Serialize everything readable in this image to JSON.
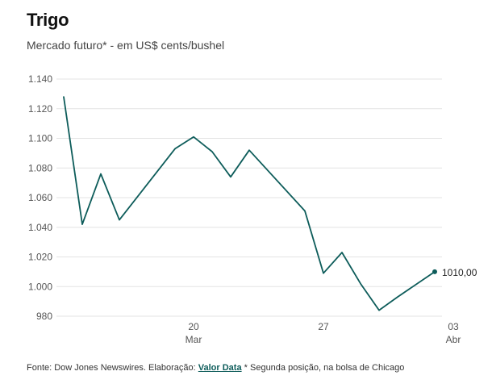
{
  "header": {
    "title": "Trigo",
    "subtitle": "Mercado futuro* - em US$ cents/bushel"
  },
  "colors": {
    "line": "#0d5c5a",
    "grid": "#e3e3e3",
    "tick_text": "#555555"
  },
  "chart_data": {
    "type": "line",
    "title": "Trigo",
    "subtitle": "Mercado futuro* - em US$ cents/bushel",
    "xlabel": "",
    "ylabel": "",
    "ylim": [
      980,
      1140
    ],
    "y_ticks": [
      980,
      1000,
      1020,
      1040,
      1060,
      1080,
      1100,
      1120,
      1140
    ],
    "y_tick_labels": [
      "980",
      "1.000",
      "1.020",
      "1.040",
      "1.060",
      "1.080",
      "1.100",
      "1.120",
      "1.140"
    ],
    "x_ticks": [
      {
        "day": 7,
        "label": "20",
        "sublabel": "Mar"
      },
      {
        "day": 14,
        "label": "27",
        "sublabel": ""
      },
      {
        "day": 21,
        "label": "03",
        "sublabel": "Abr"
      }
    ],
    "x": [
      0,
      1,
      2,
      3,
      6,
      7,
      8,
      9,
      10,
      13,
      14,
      15,
      16,
      17,
      18,
      20
    ],
    "y": [
      1128,
      1042,
      1076,
      1045,
      1093,
      1101,
      1091,
      1074,
      1092,
      1051,
      1009,
      1023,
      1002,
      984,
      993,
      1010
    ],
    "last_value_label": "1010,00",
    "grid": true
  },
  "footer": {
    "source_prefix": "Fonte: Dow Jones Newswires. Elaboração:",
    "brand": "Valor Data",
    "note": "* Segunda posição, na bolsa de Chicago"
  }
}
